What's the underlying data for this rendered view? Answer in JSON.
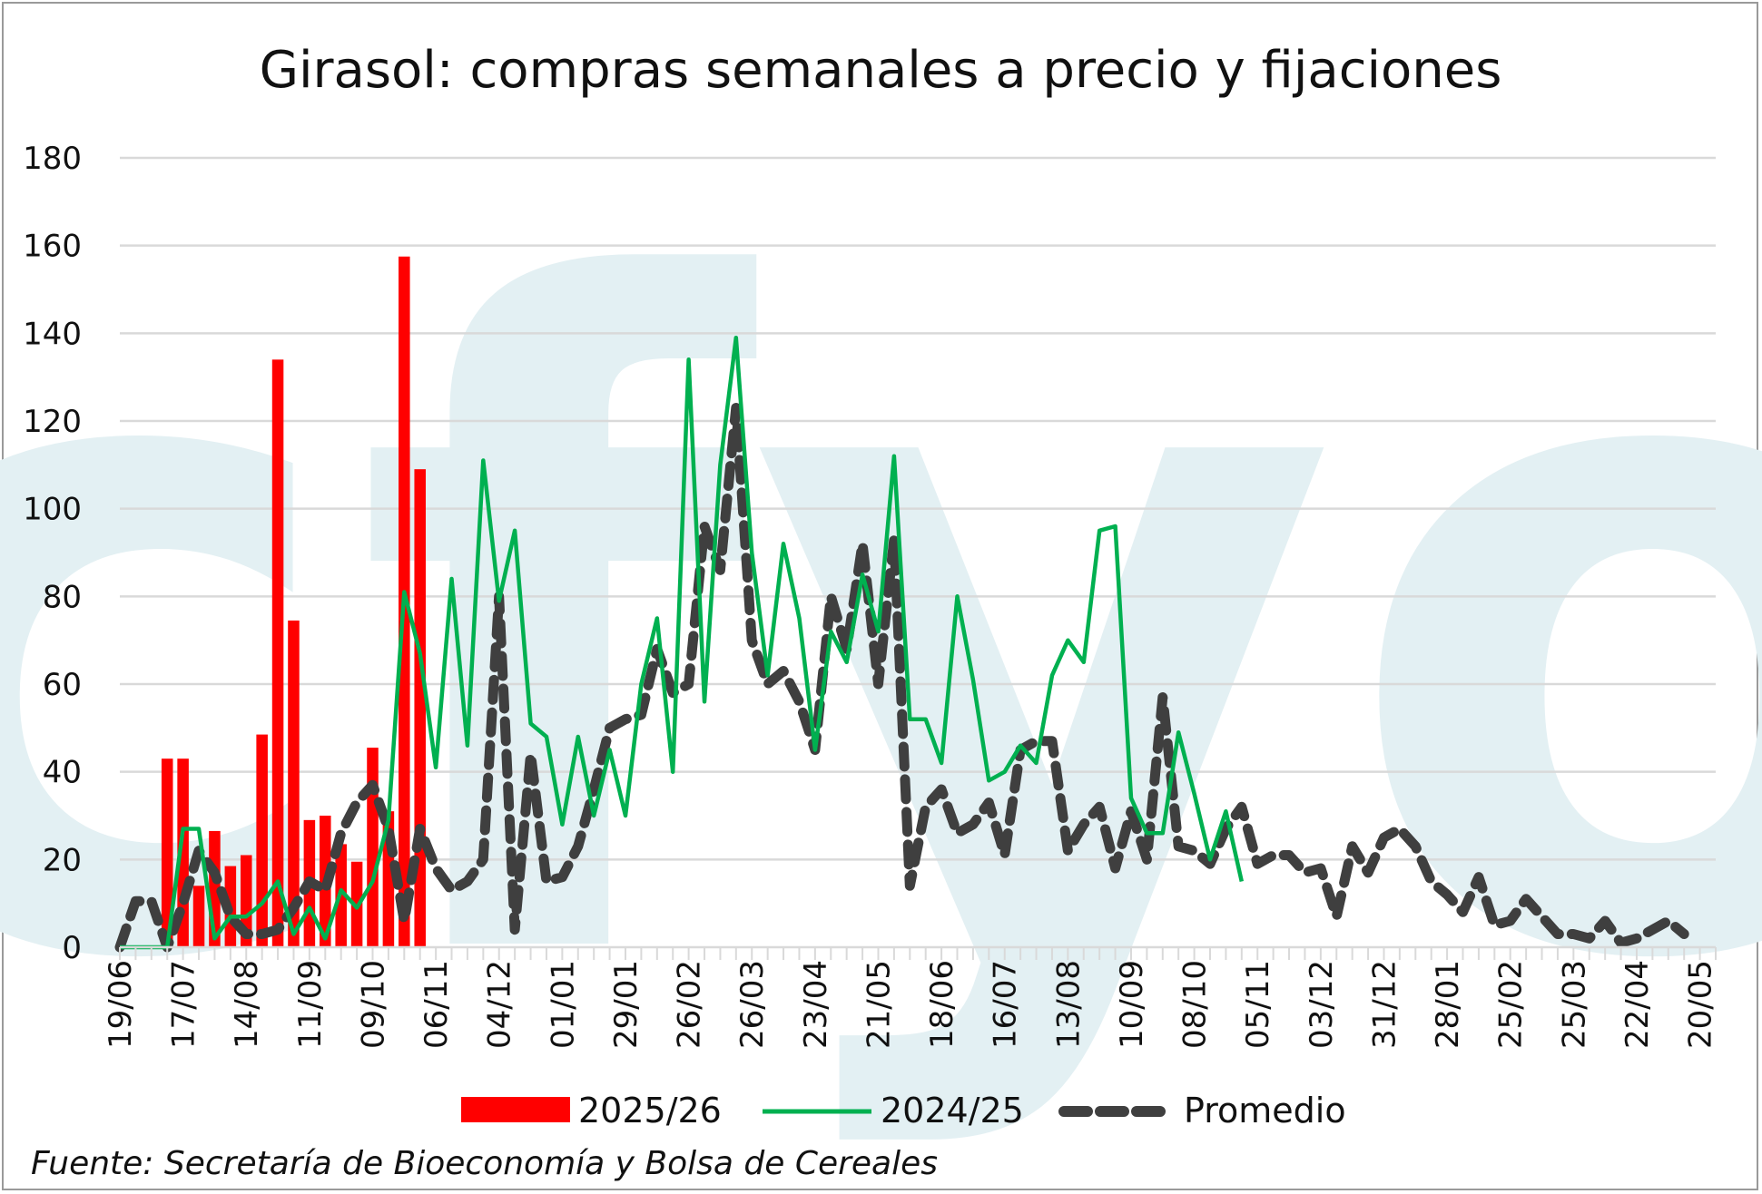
{
  "colors": {
    "series_2025": "#ff0000",
    "series_2024": "#00b050",
    "series_avg": "#3f3f3f",
    "grid": "#d9d9d9",
    "watermark": "#e3f0f3"
  },
  "watermark": {
    "text": "cfyo"
  },
  "chart_data": {
    "type": "bar",
    "title": "Girasol: compras semanales a precio y fijaciones",
    "source": "Fuente: Secretaría de Bioeconomía y Bolsa de Cereales",
    "ylim": [
      0,
      180
    ],
    "yticks": [
      0,
      20,
      40,
      60,
      80,
      100,
      120,
      140,
      160,
      180
    ],
    "x_count": 102,
    "xtick_every": 4,
    "x_tick_labels": [
      "19/06",
      "17/07",
      "14/08",
      "11/09",
      "09/10",
      "06/11",
      "04/12",
      "01/01",
      "29/01",
      "26/02",
      "26/03",
      "23/04",
      "21/05",
      "18/06",
      "16/07",
      "13/08",
      "10/09",
      "08/10",
      "05/11",
      "03/12",
      "31/12",
      "28/01",
      "25/02",
      "25/03",
      "22/04",
      "20/05"
    ],
    "grid": true,
    "legend_position": "bottom",
    "series": [
      {
        "name": "2025/26",
        "type": "bar",
        "values": [
          null,
          null,
          null,
          43,
          43,
          14,
          26.5,
          18.5,
          21,
          48.5,
          134,
          74.5,
          29,
          30,
          23.5,
          19.5,
          45.5,
          31,
          157.5,
          109
        ]
      },
      {
        "name": "2024/25",
        "type": "line",
        "values": [
          0,
          0,
          0,
          0,
          27,
          27,
          2,
          7,
          7,
          10,
          15,
          3,
          9,
          2,
          13,
          9,
          15,
          29,
          81,
          67,
          41,
          84,
          46,
          111,
          79,
          95,
          51,
          48,
          28,
          48,
          30,
          45,
          30,
          60,
          75,
          40,
          134,
          56,
          110,
          139,
          90,
          62,
          92,
          75,
          45,
          72,
          65,
          85,
          72,
          112,
          52,
          52,
          42,
          80,
          61,
          38,
          40,
          46,
          42,
          62,
          70,
          65,
          95,
          96,
          34,
          26,
          26,
          49,
          35,
          20,
          31,
          15
        ]
      },
      {
        "name": "Promedio",
        "type": "dashed-line",
        "values": [
          0,
          10.5,
          10.5,
          0,
          10,
          22,
          17,
          7,
          3,
          3,
          4,
          9,
          15,
          13,
          26,
          33,
          37,
          27,
          6,
          27,
          18,
          13,
          15,
          20,
          80,
          4,
          44,
          15,
          16,
          23,
          36,
          50,
          52,
          53,
          68,
          58,
          60,
          96,
          86,
          123,
          70,
          60,
          63,
          56,
          45,
          80,
          68,
          92,
          60,
          93,
          14,
          32,
          36,
          26,
          28,
          33,
          21,
          45,
          47,
          47,
          22,
          28,
          32,
          18,
          31,
          20,
          57,
          23,
          22,
          19,
          27,
          32,
          19,
          21,
          21,
          17,
          18,
          7,
          23,
          17,
          25,
          27,
          23,
          15,
          12,
          8,
          16,
          5,
          6,
          11,
          7,
          3,
          3,
          2,
          6,
          1,
          2,
          4,
          6,
          3
        ]
      }
    ]
  }
}
